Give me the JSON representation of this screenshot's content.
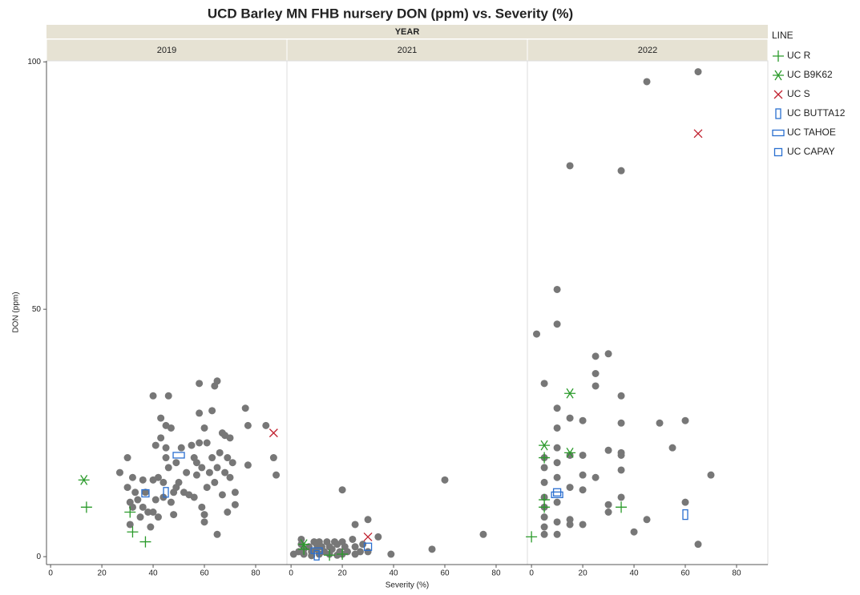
{
  "chart_data": {
    "type": "scatter",
    "title": "UCD Barley MN FHB nursery DON (ppm) vs. Severity (%)",
    "facet_title": "YEAR",
    "panels": [
      "2019",
      "2021",
      "2022"
    ],
    "xlabel": "Severity (%)",
    "ylabel": "DON (ppm)",
    "xlim": [
      -1.6,
      92.2
    ],
    "xticks": [
      0,
      20,
      40,
      60,
      80
    ],
    "ylim": [
      -1.6,
      100.2
    ],
    "yticks": [
      0,
      50,
      100
    ],
    "legend_title": "LINE",
    "series": [
      {
        "color": "#777777",
        "marker": "circle",
        "x": [
          [
            27,
            30,
            30,
            31,
            31,
            32,
            32,
            33,
            34,
            35,
            36,
            36,
            37,
            38,
            39,
            40,
            40,
            40,
            41,
            41,
            42,
            42,
            43,
            43,
            44,
            44,
            45,
            45,
            46,
            46,
            47,
            47,
            48,
            48,
            49,
            49,
            50,
            51,
            52,
            53,
            54,
            55,
            56,
            56,
            57,
            57,
            58,
            58,
            58,
            59,
            59,
            60,
            60,
            61,
            61,
            62,
            63,
            63,
            64,
            64,
            65,
            65,
            65,
            66,
            67,
            67,
            68,
            68,
            69,
            70,
            70,
            71,
            72,
            72,
            76,
            77,
            77,
            84,
            87,
            88,
            69,
            60,
            45
          ],
          [
            1,
            3,
            4,
            4,
            5,
            5,
            7,
            8,
            9,
            10,
            10,
            11,
            11,
            12,
            13,
            14,
            15,
            15,
            16,
            17,
            18,
            19,
            20,
            20,
            20,
            21,
            22,
            24,
            25,
            25,
            25,
            27,
            28,
            30,
            30,
            34,
            39,
            55,
            60,
            75,
            18,
            8
          ],
          [
            5,
            5,
            5,
            5,
            5,
            5,
            5,
            5,
            5,
            2,
            10,
            10,
            10,
            10,
            10,
            10,
            10,
            10,
            10,
            10,
            15,
            15,
            15,
            15,
            15,
            15,
            20,
            20,
            20,
            20,
            20,
            25,
            25,
            25,
            25,
            30,
            30,
            30,
            30,
            35,
            35,
            35,
            35,
            35,
            35,
            35,
            40,
            45,
            45,
            50,
            55,
            60,
            60,
            65,
            65,
            70
          ]
        ],
        "y": [
          [
            17,
            20,
            14,
            11,
            6.5,
            16,
            10,
            13,
            11.5,
            8,
            15.5,
            10,
            13,
            9,
            6,
            32.5,
            15.5,
            9,
            22.5,
            11.5,
            8,
            16,
            28,
            24,
            12,
            15,
            20,
            22,
            18,
            32.5,
            26,
            11,
            13,
            8.5,
            19,
            14,
            15,
            22,
            13,
            17,
            12.5,
            22.5,
            20,
            12,
            16.5,
            19,
            23,
            35,
            29,
            10,
            18,
            26,
            8.5,
            14,
            23,
            17,
            20,
            29.5,
            34.5,
            15,
            35.5,
            4.5,
            18,
            21,
            12.5,
            25,
            17,
            24.5,
            20,
            16,
            24,
            19,
            13,
            10.5,
            30,
            18.5,
            26.5,
            26.5,
            20,
            16.5,
            9,
            7,
            26.5
          ],
          [
            0.5,
            1,
            3.5,
            2.5,
            1.5,
            0.5,
            2,
            1,
            3,
            2.5,
            1.5,
            0.5,
            3,
            2,
            1,
            3,
            2,
            0.5,
            1.5,
            3,
            2.5,
            1,
            13.5,
            3,
            0.5,
            2,
            1,
            3.5,
            2,
            0.5,
            6.5,
            1,
            2.5,
            7.5,
            1,
            4,
            0.5,
            1.5,
            15.5,
            4.5,
            0.3,
            0.2
          ],
          [
            35,
            20,
            18,
            15,
            12,
            10,
            8,
            6,
            4.5,
            45,
            54,
            47,
            30,
            26,
            22,
            19,
            16,
            11,
            7,
            4.5,
            79,
            28,
            20.5,
            14,
            7.5,
            6.5,
            27.5,
            20.5,
            16.5,
            13.5,
            6.5,
            40.5,
            37,
            34.5,
            16,
            41,
            21.5,
            10.5,
            9,
            78,
            32.5,
            27,
            21,
            20.5,
            17.5,
            12,
            5,
            96,
            7.5,
            27,
            22,
            27.5,
            11,
            98,
            2.5,
            16.5
          ]
        ]
      },
      {
        "name": "UC R",
        "color": "#2a9a2a",
        "marker": "plus",
        "x": [
          [
            14,
            31,
            32,
            37
          ],
          [
            5,
            15,
            20
          ],
          [
            0,
            5,
            5,
            35,
            5
          ]
        ],
        "y": [
          [
            10,
            9,
            5,
            3
          ],
          [
            1.5,
            0.3,
            0.5
          ],
          [
            4,
            11.5,
            10,
            10,
            20
          ]
        ]
      },
      {
        "name": "UC B9K62",
        "color": "#2a9a2a",
        "marker": "asterisk",
        "x": [
          [
            13
          ],
          [
            5
          ],
          [
            5,
            15,
            15
          ]
        ],
        "y": [
          [
            15.5
          ],
          [
            2.5
          ],
          [
            22.5,
            33,
            21
          ]
        ]
      },
      {
        "name": "UC S",
        "color": "#c0202e",
        "marker": "x",
        "x": [
          [
            87
          ],
          [
            30
          ],
          [
            65
          ]
        ],
        "y": [
          [
            25
          ],
          [
            4
          ],
          [
            85.5
          ]
        ]
      },
      {
        "name": "UC BUTTA12",
        "color": "#2a6fd0",
        "marker": "tall",
        "x": [
          [
            45
          ],
          [
            10
          ],
          [
            60
          ]
        ],
        "y": [
          [
            13
          ],
          [
            0.3
          ],
          [
            8.5
          ]
        ]
      },
      {
        "name": "UC TAHOE",
        "color": "#2a6fd0",
        "marker": "wide",
        "x": [
          [
            50
          ],
          [
            10
          ],
          [
            10
          ]
        ],
        "y": [
          [
            20.5
          ],
          [
            1.2
          ],
          [
            12.5
          ]
        ]
      },
      {
        "name": "UC CAPAY",
        "color": "#2a6fd0",
        "marker": "square",
        "x": [
          [
            37
          ],
          [
            30
          ],
          [
            10
          ]
        ],
        "y": [
          [
            12.8
          ],
          [
            2
          ],
          [
            13
          ]
        ]
      }
    ]
  }
}
